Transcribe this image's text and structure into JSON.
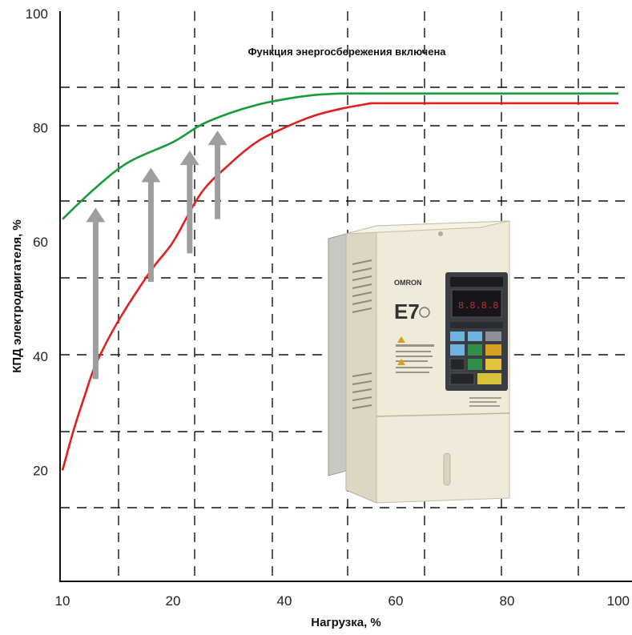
{
  "chart_data": {
    "type": "line",
    "title": "",
    "annotation": "Функция энергосбережения включена",
    "xlabel": "Нагрузка, %",
    "ylabel": "КПД электродвигателя, %",
    "xlim": [
      10,
      100
    ],
    "ylim": [
      0,
      100
    ],
    "x_ticks": [
      "10",
      "20",
      "40",
      "60",
      "80",
      "100"
    ],
    "y_ticks": [
      "20",
      "40",
      "60",
      "80",
      "100"
    ],
    "grid": "dashed",
    "series": [
      {
        "color": "#1a9a3a",
        "x": [
          10,
          13,
          16,
          20,
          25,
          30,
          35,
          40,
          45,
          50,
          55,
          60,
          70,
          80,
          90,
          100
        ],
        "y": [
          64,
          69.5,
          74,
          77.5,
          80.5,
          82.5,
          84,
          85,
          85.7,
          86,
          86,
          86,
          86,
          86,
          86,
          86
        ]
      },
      {
        "color": "#e02020",
        "x": [
          10,
          11,
          12,
          13,
          15,
          18,
          20,
          25,
          30,
          35,
          40,
          45,
          50,
          55,
          56,
          60,
          70,
          80,
          90,
          100
        ],
        "y": [
          20,
          27,
          33,
          38.5,
          46,
          55,
          60,
          68.5,
          73.5,
          77.5,
          80,
          82,
          83.3,
          84.2,
          84.3,
          84.3,
          84.3,
          84.3,
          84.3,
          84.3
        ]
      }
    ],
    "arrows": [
      {
        "x": 13,
        "from": 36,
        "to": 66
      },
      {
        "x": 18,
        "from": 53,
        "to": 73
      },
      {
        "x": 23,
        "from": 58,
        "to": 76
      },
      {
        "x": 28,
        "from": 64,
        "to": 79.5
      }
    ],
    "arrow_color": "#9e9e9e"
  },
  "device": {
    "brand": "OMRON",
    "model": "E7",
    "panel_color": "#ece7d6"
  }
}
